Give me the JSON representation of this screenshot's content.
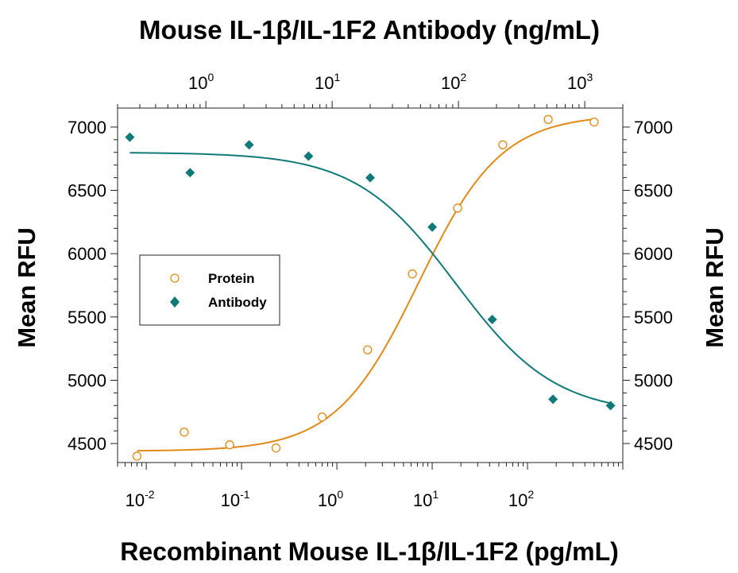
{
  "chart_data": {
    "type": "scatter",
    "title": "Mouse IL-1β/IL-1F2 Antibody (ng/mL)",
    "xlabel": "Recombinant Mouse IL-1β/IL-1F2 (pg/mL)",
    "ylabel": "Mean RFU",
    "ylabel_right": "Mean RFU",
    "x_scale": "log",
    "xlim": [
      0.005,
      1000
    ],
    "ylim": [
      4350,
      7150
    ],
    "x_ticks": [
      {
        "base": "10",
        "exp": "-2",
        "value": 0.01
      },
      {
        "base": "10",
        "exp": "-1",
        "value": 0.1
      },
      {
        "base": "10",
        "exp": "0",
        "value": 1
      },
      {
        "base": "10",
        "exp": "1",
        "value": 10
      },
      {
        "base": "10",
        "exp": "2",
        "value": 100
      }
    ],
    "top_xlim": [
      0.2,
      2000
    ],
    "top_ticks": [
      {
        "base": "10",
        "exp": "0",
        "value": 1
      },
      {
        "base": "10",
        "exp": "1",
        "value": 10
      },
      {
        "base": "10",
        "exp": "2",
        "value": 100
      },
      {
        "base": "10",
        "exp": "3",
        "value": 1000
      }
    ],
    "y_ticks": [
      "4500",
      "5000",
      "5500",
      "6000",
      "6500",
      "7000"
    ],
    "legend": {
      "placement": "middle-left"
    },
    "series": [
      {
        "name": "Protein",
        "marker": "open-circle",
        "color": "#e08a17",
        "axis": "bottom",
        "x": [
          0.008,
          0.025,
          0.075,
          0.23,
          0.7,
          2.1,
          6.2,
          18.5,
          55,
          165,
          500
        ],
        "y": [
          4400,
          4590,
          4490,
          4465,
          4710,
          5240,
          5840,
          6360,
          6860,
          7060,
          7040
        ],
        "fit": {
          "bottom": 4440,
          "top": 7100,
          "ec50": 7.2,
          "hill": 1.0
        }
      },
      {
        "name": "Antibody",
        "marker": "filled-diamond",
        "color": "#0f7a78",
        "axis": "top",
        "x": [
          0.25,
          0.75,
          2.2,
          6.5,
          20,
          62,
          185,
          560,
          1600
        ],
        "y": [
          6920,
          6640,
          6860,
          6770,
          6600,
          6210,
          5480,
          4850,
          4800
        ],
        "fit": {
          "bottom": 4730,
          "top": 6800,
          "ic50": 95,
          "hill": 1.1
        }
      }
    ]
  }
}
